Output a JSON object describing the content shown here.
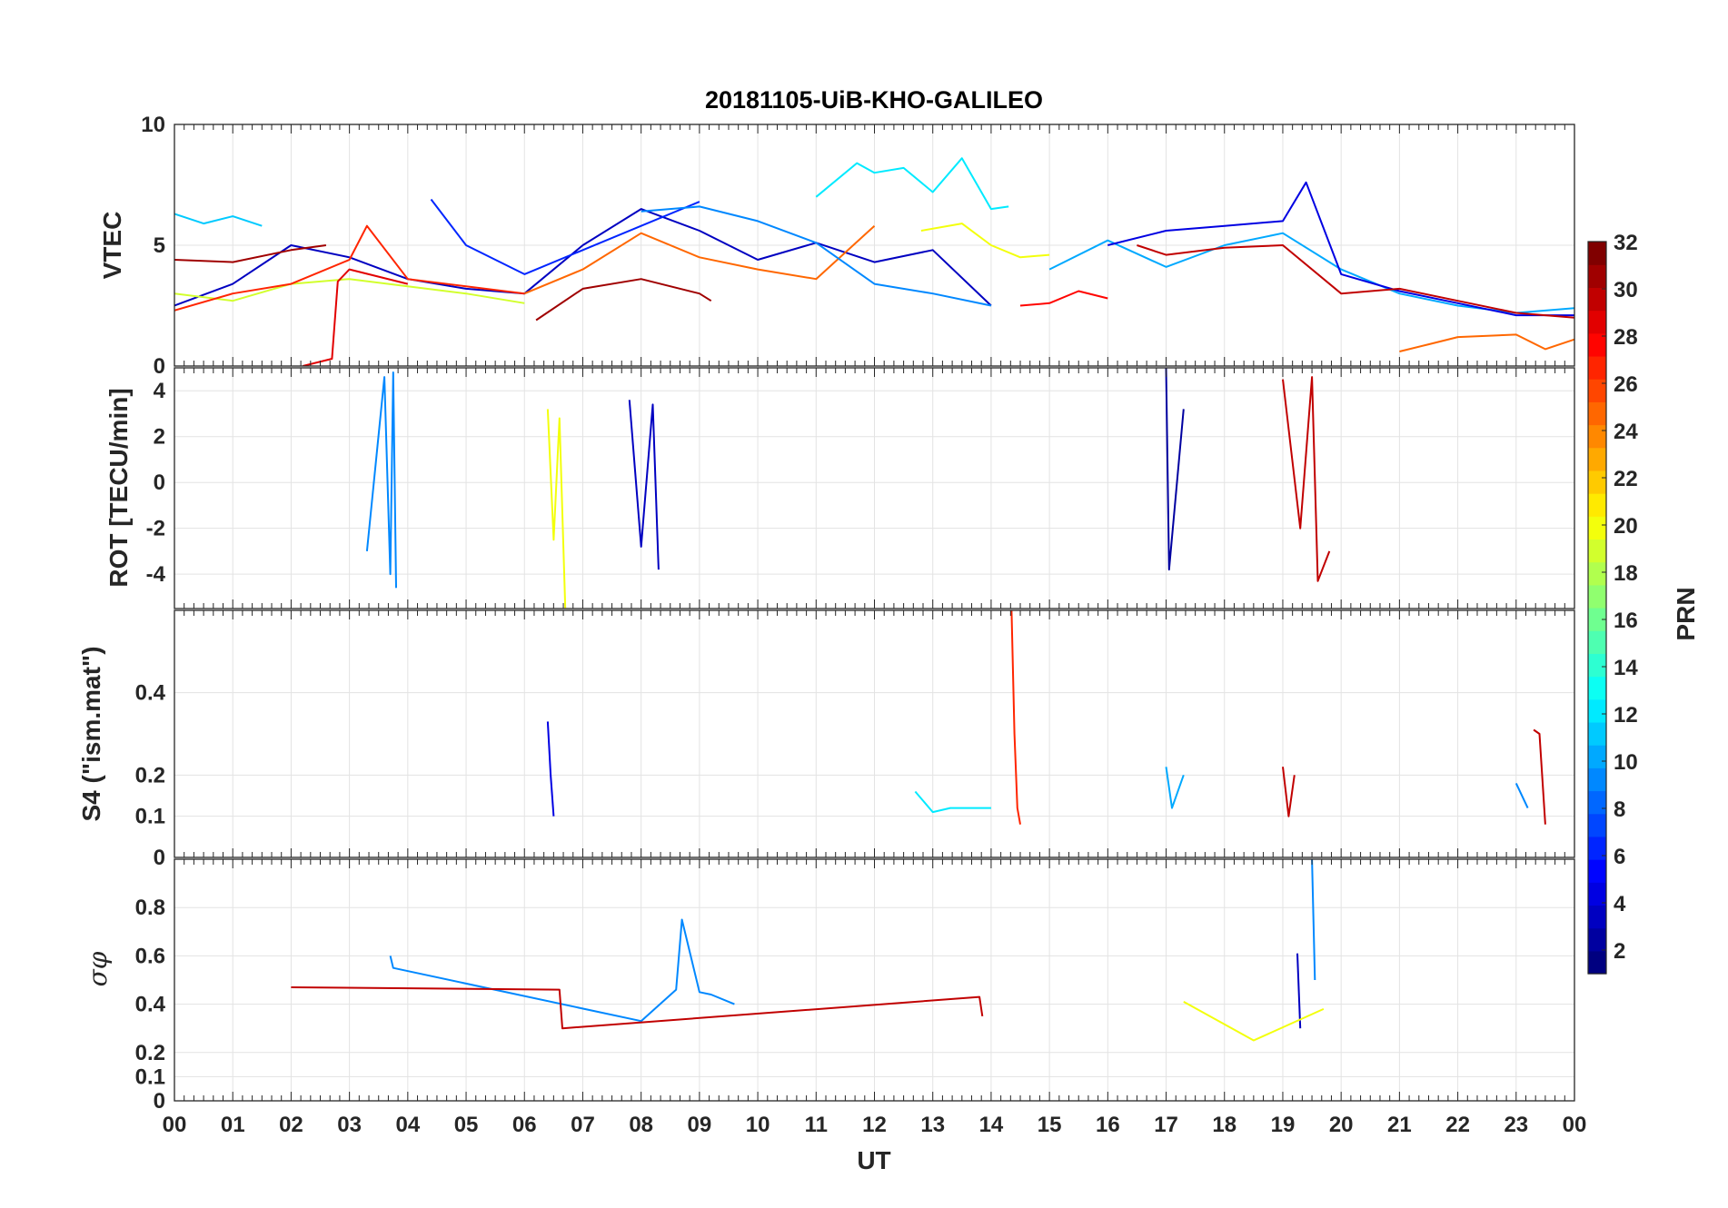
{
  "chart_data": {
    "type": "line",
    "title": "20181105-UiB-KHO-GALILEO",
    "xlabel": "UT",
    "x_range": [
      0,
      24
    ],
    "x_ticks": [
      "00",
      "01",
      "02",
      "03",
      "04",
      "05",
      "06",
      "07",
      "08",
      "09",
      "10",
      "11",
      "12",
      "13",
      "14",
      "15",
      "16",
      "17",
      "18",
      "19",
      "20",
      "21",
      "22",
      "23",
      "00"
    ],
    "colorbar": {
      "label": "PRN",
      "range": [
        1,
        32
      ],
      "colormap": "jet",
      "ticks": [
        "2",
        "4",
        "6",
        "8",
        "10",
        "12",
        "14",
        "16",
        "18",
        "20",
        "22",
        "24",
        "26",
        "28",
        "30",
        "32"
      ]
    },
    "panels": [
      {
        "id": "vtec",
        "ylabel": "VTEC",
        "ylim": [
          0,
          10
        ],
        "yticks": [
          "0",
          "5",
          "10"
        ],
        "series": [
          {
            "prn": 11,
            "x": [
              0,
              0.5,
              1,
              1.5
            ],
            "y": [
              6.3,
              5.9,
              6.2,
              5.8
            ]
          },
          {
            "prn": 3,
            "x": [
              0,
              1,
              2,
              3,
              4,
              5,
              6,
              7,
              8,
              9,
              10,
              11,
              12,
              13,
              14
            ],
            "y": [
              2.5,
              3.4,
              5.0,
              4.5,
              3.6,
              3.2,
              3.0,
              5.0,
              6.5,
              5.6,
              4.4,
              5.1,
              4.3,
              4.8,
              2.5
            ]
          },
          {
            "prn": 19,
            "x": [
              0,
              1,
              2,
              3,
              4,
              5,
              6
            ],
            "y": [
              3.0,
              2.7,
              3.4,
              3.6,
              3.3,
              3.0,
              2.6
            ]
          },
          {
            "prn": 31,
            "x": [
              0,
              1,
              2,
              2.6
            ],
            "y": [
              4.4,
              4.3,
              4.8,
              5.0
            ]
          },
          {
            "prn": 27,
            "x": [
              0,
              1,
              2,
              3,
              3.3,
              4,
              5,
              6
            ],
            "y": [
              2.3,
              3.0,
              3.4,
              4.4,
              5.8,
              3.6,
              3.3,
              3.0
            ]
          },
          {
            "prn": 29,
            "x": [
              2.2,
              2.7,
              2.8,
              3,
              4
            ],
            "y": [
              0.0,
              0.3,
              3.5,
              4.0,
              3.4
            ]
          },
          {
            "prn": 6,
            "x": [
              4.4,
              5,
              6,
              7,
              8,
              9
            ],
            "y": [
              6.9,
              5.0,
              3.8,
              4.8,
              5.8,
              6.8
            ]
          },
          {
            "prn": 31,
            "x": [
              6.2,
              7,
              8,
              9,
              9.2
            ],
            "y": [
              1.9,
              3.2,
              3.6,
              3.0,
              2.7
            ]
          },
          {
            "prn": 25,
            "x": [
              6,
              7,
              8,
              9,
              10,
              11,
              12
            ],
            "y": [
              3.0,
              4.0,
              5.5,
              4.5,
              4.0,
              3.6,
              5.8
            ]
          },
          {
            "prn": 9,
            "x": [
              8,
              9,
              10,
              11,
              12,
              13,
              14
            ],
            "y": [
              6.4,
              6.6,
              6.0,
              5.1,
              3.4,
              3.0,
              2.5
            ]
          },
          {
            "prn": 12,
            "x": [
              11,
              11.7,
              12,
              12.5,
              13,
              13.5,
              14,
              14.3
            ],
            "y": [
              7.0,
              8.4,
              8.0,
              8.2,
              7.2,
              8.6,
              6.5,
              6.6
            ]
          },
          {
            "prn": 20,
            "x": [
              12.8,
              13.5,
              14,
              14.5,
              15
            ],
            "y": [
              5.6,
              5.9,
              5.0,
              4.5,
              4.6
            ]
          },
          {
            "prn": 28,
            "x": [
              14.5,
              15,
              15.5,
              16
            ],
            "y": [
              2.5,
              2.6,
              3.1,
              2.8
            ]
          },
          {
            "prn": 10,
            "x": [
              15,
              16,
              17,
              18,
              19,
              20,
              21,
              22,
              23,
              24
            ],
            "y": [
              4.0,
              5.2,
              4.1,
              5.0,
              5.5,
              4.0,
              3.0,
              2.5,
              2.2,
              2.4
            ]
          },
          {
            "prn": 4,
            "x": [
              16,
              17,
              18,
              19,
              19.4,
              20,
              21,
              22,
              23,
              24
            ],
            "y": [
              5.0,
              5.6,
              5.8,
              6.0,
              7.6,
              3.8,
              3.1,
              2.6,
              2.1,
              2.1
            ]
          },
          {
            "prn": 25,
            "x": [
              21,
              21.5,
              22,
              23,
              23.5,
              24
            ],
            "y": [
              0.6,
              0.9,
              1.2,
              1.3,
              0.7,
              1.1
            ]
          },
          {
            "prn": 30,
            "x": [
              16.5,
              17,
              18,
              19,
              20,
              21,
              22,
              23,
              24
            ],
            "y": [
              5.0,
              4.6,
              4.9,
              5.0,
              3.0,
              3.2,
              2.7,
              2.2,
              2.0
            ]
          }
        ]
      },
      {
        "id": "rot",
        "ylabel": "ROT [TECU/min]",
        "ylim": [
          -5.5,
          5
        ],
        "yticks": [
          "-4",
          "-2",
          "0",
          "2",
          "4"
        ],
        "series": [
          {
            "prn": 9,
            "x": [
              3.3,
              3.6,
              3.7,
              3.75,
              3.8
            ],
            "y": [
              -3.0,
              4.6,
              -4.0,
              4.8,
              -4.6
            ]
          },
          {
            "prn": 20,
            "x": [
              6.4,
              6.5,
              6.6,
              6.7
            ],
            "y": [
              3.2,
              -2.5,
              2.8,
              -5.5
            ]
          },
          {
            "prn": 3,
            "x": [
              7.8,
              8.0,
              8.2,
              8.3
            ],
            "y": [
              3.6,
              -2.8,
              3.4,
              -3.8
            ]
          },
          {
            "prn": 2,
            "x": [
              17.0,
              17.05,
              17.3
            ],
            "y": [
              5.0,
              -3.8,
              3.2
            ]
          },
          {
            "prn": 30,
            "x": [
              19.0,
              19.3,
              19.5,
              19.6,
              19.8
            ],
            "y": [
              4.5,
              -2.0,
              4.6,
              -4.3,
              -3.0
            ]
          }
        ]
      },
      {
        "id": "s4",
        "ylabel": "S4 (\"ism.mat\")",
        "ylim": [
          0,
          0.6
        ],
        "yticks": [
          "0",
          "0.1",
          "0.2",
          "0.4"
        ],
        "series": [
          {
            "prn": 4,
            "x": [
              6.4,
              6.45,
              6.5
            ],
            "y": [
              0.33,
              0.2,
              0.1
            ]
          },
          {
            "prn": 27,
            "x": [
              14.35,
              14.4,
              14.45,
              14.5
            ],
            "y": [
              0.6,
              0.3,
              0.12,
              0.08
            ]
          },
          {
            "prn": 30,
            "x": [
              23.3,
              23.4,
              23.5
            ],
            "y": [
              0.31,
              0.3,
              0.08
            ]
          },
          {
            "prn": 10,
            "x": [
              17.0,
              17.1,
              17.3
            ],
            "y": [
              0.22,
              0.12,
              0.2
            ]
          },
          {
            "prn": 12,
            "x": [
              12.7,
              13.0,
              13.3,
              14.0
            ],
            "y": [
              0.16,
              0.11,
              0.12,
              0.12
            ]
          },
          {
            "prn": 30,
            "x": [
              19.0,
              19.1,
              19.2
            ],
            "y": [
              0.22,
              0.1,
              0.2
            ]
          },
          {
            "prn": 9,
            "x": [
              23.0,
              23.2
            ],
            "y": [
              0.18,
              0.12
            ]
          }
        ]
      },
      {
        "id": "sigma",
        "ylabel": "σφ",
        "ylim": [
          0,
          1.0
        ],
        "yticks": [
          "0",
          "0.1",
          "0.2",
          "0.4",
          "0.6",
          "0.8"
        ],
        "series": [
          {
            "prn": 9,
            "x": [
              3.7,
              3.75,
              8.0,
              8.6,
              8.7,
              9.0,
              9.2,
              9.6
            ],
            "y": [
              0.6,
              0.55,
              0.33,
              0.46,
              0.75,
              0.45,
              0.44,
              0.4
            ]
          },
          {
            "prn": 30,
            "x": [
              2.0,
              6.6,
              6.65,
              13.8,
              13.85
            ],
            "y": [
              0.47,
              0.46,
              0.3,
              0.43,
              0.35
            ]
          },
          {
            "prn": 9,
            "x": [
              19.5,
              19.55
            ],
            "y": [
              1.0,
              0.5
            ]
          },
          {
            "prn": 3,
            "x": [
              19.25,
              19.3
            ],
            "y": [
              0.61,
              0.3
            ]
          },
          {
            "prn": 20,
            "x": [
              17.3,
              18.5,
              19.7
            ],
            "y": [
              0.41,
              0.25,
              0.38
            ]
          }
        ]
      }
    ]
  }
}
